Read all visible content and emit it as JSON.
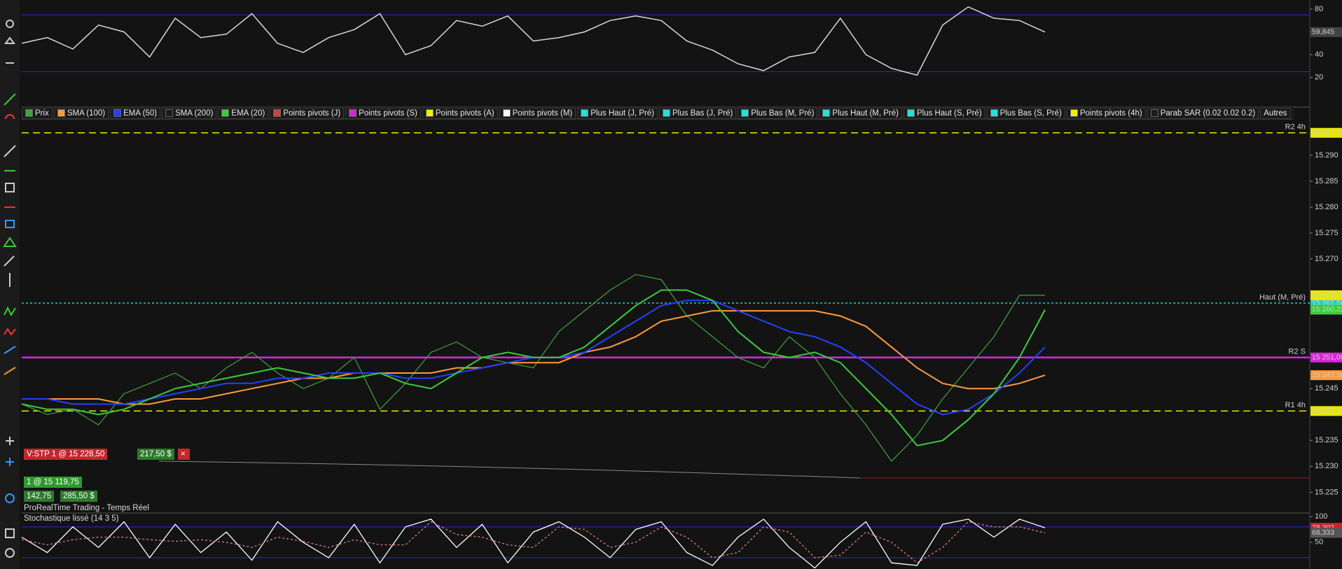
{
  "rsi": {
    "ylim": [
      -6,
      88
    ],
    "yticks": [
      20,
      40,
      60,
      80
    ],
    "levels": [
      75,
      25
    ],
    "color": "#d8d8d8",
    "values": [
      50,
      55,
      45,
      66,
      60,
      38,
      72,
      55,
      58,
      76,
      50,
      42,
      55,
      62,
      76,
      40,
      48,
      70,
      65,
      74,
      52,
      55,
      60,
      70,
      74,
      70,
      52,
      44,
      32,
      26,
      38,
      42,
      72,
      40,
      28,
      22,
      66,
      82,
      72,
      70,
      59.845
    ],
    "last_label": "59,845"
  },
  "legend": [
    {
      "label": "Prix",
      "color": "#3fa33f",
      "values": [
        15242,
        15240,
        15241,
        15238,
        15244,
        15246,
        15248,
        15245,
        15249,
        15252,
        15248,
        15245,
        15247,
        15251,
        15241,
        15246,
        15252,
        15254,
        15251,
        15250,
        15249,
        15256,
        15260,
        15264,
        15267,
        15266,
        15259,
        15255,
        15251,
        15249,
        15255,
        15251,
        15244,
        15238,
        15231,
        15236,
        15243,
        15249,
        15255,
        15263,
        15263
      ],
      "last_label": "15 263,00",
      "label_color": "#e8e800"
    },
    {
      "label": "SMA (100)",
      "color": "#ff9a3c",
      "values": [
        15243,
        15243,
        15243,
        15243,
        15242,
        15242,
        15243,
        15243,
        15244,
        15245,
        15246,
        15247,
        15247,
        15248,
        15248,
        15248,
        15248,
        15249,
        15249,
        15250,
        15250,
        15250,
        15252,
        15253,
        15255,
        15258,
        15259,
        15260,
        15260,
        15260,
        15260,
        15260,
        15259,
        15257,
        15253,
        15249,
        15246,
        15245,
        15245,
        15246,
        15247.58
      ],
      "last_label": "15 247,58",
      "label_color": "#ff9a3c"
    },
    {
      "label": "EMA (50)",
      "color": "#2440ff",
      "values": [
        15243,
        15243,
        15242,
        15242,
        15242,
        15243,
        15244,
        15245,
        15246,
        15246,
        15247,
        15247,
        15248,
        15248,
        15248,
        15247,
        15247,
        15248,
        15249,
        15250,
        15251,
        15251,
        15252,
        15255,
        15258,
        15261,
        15262,
        15262,
        15260,
        15258,
        15256,
        15255,
        15253,
        15250,
        15246,
        15242,
        15240,
        15241,
        15244,
        15248,
        15253
      ]
    },
    {
      "label": "SMA (200)",
      "color": "#1c1c1c"
    },
    {
      "label": "EMA (20)",
      "color": "#3ccc3c",
      "values": [
        15242,
        15241,
        15241,
        15240,
        15241,
        15243,
        15245,
        15246,
        15247,
        15248,
        15249,
        15248,
        15247,
        15247,
        15248,
        15246,
        15245,
        15248,
        15251,
        15252,
        15251,
        15251,
        15253,
        15257,
        15261,
        15264,
        15264,
        15262,
        15256,
        15252,
        15251,
        15252,
        15250,
        15245,
        15240,
        15234,
        15235,
        15239,
        15244,
        15251,
        15260.22
      ],
      "last_label": "15 260,22",
      "label_color": "#3ccc3c"
    },
    {
      "label": "Points pivots (J)",
      "color": "#d04040"
    },
    {
      "label": "Points pivots (S)",
      "color": "#e020e0"
    },
    {
      "label": "Points pivots (A)",
      "color": "#f0f000"
    },
    {
      "label": "Points pivots (M)",
      "color": "#ffffff"
    },
    {
      "label": "Plus Haut (J, Pré)",
      "color": "#20e0e0"
    },
    {
      "label": "Plus Bas (J, Pré)",
      "color": "#20e0e0"
    },
    {
      "label": "Plus Bas (M, Pré)",
      "color": "#20e0e0"
    },
    {
      "label": "Plus Haut (M, Pré)",
      "color": "#20e0e0"
    },
    {
      "label": "Plus Haut (S, Pré)",
      "color": "#20e0e0"
    },
    {
      "label": "Plus Bas (S, Pré)",
      "color": "#20e0e0"
    },
    {
      "label": "Points pivots (4h)",
      "color": "#f0f000"
    },
    {
      "label": "Parab SAR (0.02 0.02 0.2)",
      "color": "#1c1c1c"
    }
  ],
  "others_button": "Autres",
  "price": {
    "ylim": [
      15221,
      15297
    ],
    "yticks": [
      {
        "value": 15290,
        "label": "15.290"
      },
      {
        "value": 15285,
        "label": "15.285"
      },
      {
        "value": 15280,
        "label": "15.280"
      },
      {
        "value": 15275,
        "label": "15.275"
      },
      {
        "value": 15270,
        "label": "15.270"
      },
      {
        "value": 15245,
        "label": "15.245"
      },
      {
        "value": 15235,
        "label": "15.235"
      },
      {
        "value": 15230,
        "label": "15.230"
      },
      {
        "value": 15225,
        "label": "15.225"
      }
    ],
    "levels": [
      {
        "label": "R2 4h",
        "value": 15294.33,
        "value_label": "15 294,33",
        "color": "#e8e800",
        "style": "dashed"
      },
      {
        "label": "Haut (M, Pré)",
        "value": 15261.5,
        "value_label": "15 261,50",
        "color": "#20d0d0",
        "style": "dotted"
      },
      {
        "label": "R2 S",
        "value": 15251,
        "value_label": "15 251,00",
        "color": "#e020e0",
        "style": "solid"
      },
      {
        "label": "R1 4h",
        "value": 15240.67,
        "value_label": "15 240,67",
        "color": "#e8e800",
        "style": "dashed"
      }
    ]
  },
  "orders": {
    "stop": "V:STP  1 @ 15 228,50",
    "stop_pnl": "217,50 $",
    "position": "1 @ 15 119,75",
    "position_points": "142,75",
    "position_pnl": "285,50 $"
  },
  "status": "ProRealTime Trading - Temps Réel",
  "stoch": {
    "title": "Stochastique lissé (14 3 5)",
    "ylim": [
      -2,
      107
    ],
    "yticks": [
      50,
      100
    ],
    "levels": [
      80,
      20
    ],
    "series": [
      {
        "color": "#ffffff",
        "values": [
          60,
          30,
          80,
          40,
          90,
          20,
          85,
          30,
          70,
          15,
          90,
          50,
          20,
          85,
          10,
          80,
          95,
          40,
          85,
          10,
          70,
          90,
          60,
          20,
          75,
          90,
          30,
          5,
          60,
          95,
          40,
          0,
          50,
          90,
          10,
          5,
          85,
          95,
          60,
          95,
          78.302
        ],
        "last_label": "78,302",
        "label_color": "#c0282d"
      },
      {
        "color": "#e07a7a",
        "values": [
          55,
          45,
          55,
          60,
          60,
          55,
          52,
          55,
          50,
          40,
          60,
          52,
          40,
          55,
          45,
          45,
          90,
          65,
          60,
          45,
          40,
          80,
          75,
          40,
          50,
          80,
          60,
          20,
          30,
          80,
          70,
          20,
          25,
          70,
          50,
          10,
          40,
          90,
          80,
          80,
          68.333
        ],
        "last_label": "68,333",
        "label_color": "#555555"
      }
    ]
  }
}
